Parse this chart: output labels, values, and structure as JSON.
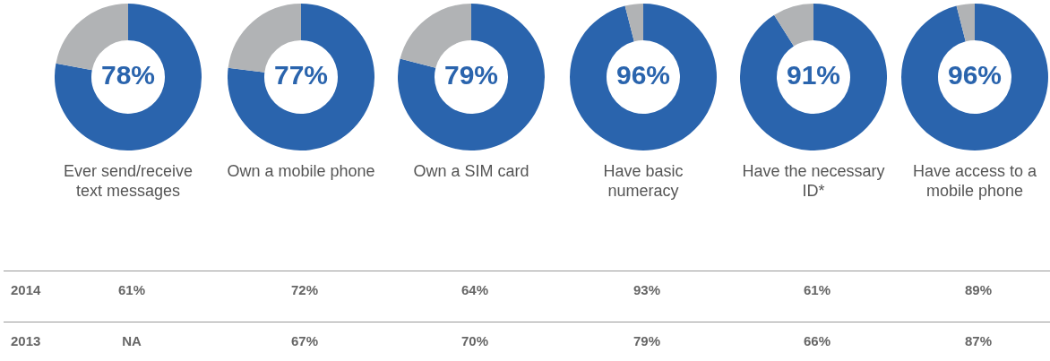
{
  "chart_data": [
    {
      "type": "donut",
      "title": "Ever send/receive text messages",
      "categories": [
        null,
        null
      ],
      "values": [
        78,
        22
      ],
      "colors": [
        "#2a64ad",
        "#b1b3b5"
      ],
      "value_labels": [
        "78%",
        null
      ]
    },
    {
      "type": "donut",
      "title": "Own a mobile phone",
      "categories": [
        null,
        null
      ],
      "values": [
        77,
        23
      ],
      "colors": [
        "#2a64ad",
        "#b1b3b5"
      ],
      "value_labels": [
        "77%",
        null
      ]
    },
    {
      "type": "donut",
      "title": "Own a SIM card",
      "categories": [
        null,
        null
      ],
      "values": [
        79,
        21
      ],
      "colors": [
        "#2a64ad",
        "#b1b3b5"
      ],
      "value_labels": [
        "79%",
        null
      ]
    },
    {
      "type": "donut",
      "title": "Have basic numeracy",
      "categories": [
        null,
        null
      ],
      "values": [
        96,
        4
      ],
      "colors": [
        "#2a64ad",
        "#b1b3b5"
      ],
      "value_labels": [
        "96%",
        null
      ]
    },
    {
      "type": "donut",
      "title": "Have the necessary ID*",
      "categories": [
        null,
        null
      ],
      "values": [
        91,
        9
      ],
      "colors": [
        "#2a64ad",
        "#b1b3b5"
      ],
      "value_labels": [
        "91%",
        null
      ]
    },
    {
      "type": "donut",
      "title": "Have access to a mobile phone",
      "categories": [
        null,
        null
      ],
      "values": [
        96,
        4
      ],
      "colors": [
        "#2a64ad",
        "#b1b3b5"
      ],
      "value_labels": [
        "96%",
        null
      ]
    },
    {
      "type": "other",
      "annotations": [
        "2014",
        "61%",
        "72%",
        "64%",
        "93%",
        "61%",
        "89%",
        "2013",
        "NA",
        "67%",
        "70%",
        "79%",
        "66%",
        "87%"
      ]
    }
  ]
}
